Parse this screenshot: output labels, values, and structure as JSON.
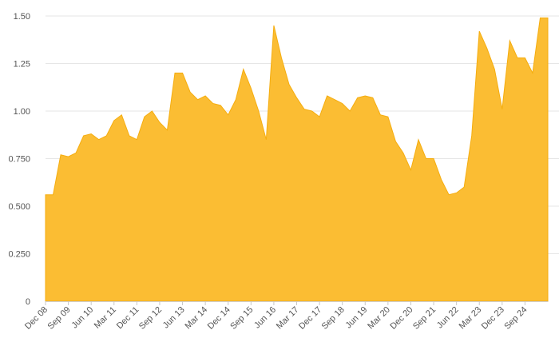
{
  "chart_data": {
    "type": "area",
    "title": "",
    "xlabel": "",
    "ylabel": "",
    "ylim": [
      0,
      1.5
    ],
    "grid": true,
    "legend": "none",
    "colors": {
      "area_fill": "#fbbd33",
      "area_stroke": "#f5ad0f",
      "gridline": "#e6e6e6",
      "axis_line": "#cfcfcf",
      "tick_label": "#555555"
    },
    "y_ticks": [
      {
        "value": 0,
        "label": "0"
      },
      {
        "value": 0.25,
        "label": "0.250"
      },
      {
        "value": 0.5,
        "label": "0.500"
      },
      {
        "value": 0.75,
        "label": "0.750"
      },
      {
        "value": 1.0,
        "label": "1.00"
      },
      {
        "value": 1.25,
        "label": "1.25"
      },
      {
        "value": 1.5,
        "label": "1.50"
      }
    ],
    "x_ticks": [
      {
        "index": 0,
        "label": "Dec 08"
      },
      {
        "index": 3,
        "label": "Sep 09"
      },
      {
        "index": 6,
        "label": "Jun 10"
      },
      {
        "index": 9,
        "label": "Mar 11"
      },
      {
        "index": 12,
        "label": "Dec 11"
      },
      {
        "index": 15,
        "label": "Sep 12"
      },
      {
        "index": 18,
        "label": "Jun 13"
      },
      {
        "index": 21,
        "label": "Mar 14"
      },
      {
        "index": 24,
        "label": "Dec 14"
      },
      {
        "index": 27,
        "label": "Sep 15"
      },
      {
        "index": 30,
        "label": "Jun 16"
      },
      {
        "index": 33,
        "label": "Mar 17"
      },
      {
        "index": 36,
        "label": "Dec 17"
      },
      {
        "index": 39,
        "label": "Sep 18"
      },
      {
        "index": 42,
        "label": "Jun 19"
      },
      {
        "index": 45,
        "label": "Mar 20"
      },
      {
        "index": 48,
        "label": "Dec 20"
      },
      {
        "index": 51,
        "label": "Sep 21"
      },
      {
        "index": 54,
        "label": "Jun 22"
      },
      {
        "index": 57,
        "label": "Mar 23"
      },
      {
        "index": 60,
        "label": "Dec 23"
      },
      {
        "index": 63,
        "label": "Sep 24"
      }
    ],
    "x": [
      "Dec 08",
      "Mar 09",
      "Jun 09",
      "Sep 09",
      "Dec 09",
      "Mar 10",
      "Jun 10",
      "Sep 10",
      "Dec 10",
      "Mar 11",
      "Jun 11",
      "Sep 11",
      "Dec 11",
      "Mar 12",
      "Jun 12",
      "Sep 12",
      "Dec 12",
      "Mar 13",
      "Jun 13",
      "Sep 13",
      "Dec 13",
      "Mar 14",
      "Jun 14",
      "Sep 14",
      "Dec 14",
      "Mar 15",
      "Jun 15",
      "Sep 15",
      "Dec 15",
      "Mar 16",
      "Jun 16",
      "Sep 16",
      "Dec 16",
      "Mar 17",
      "Jun 17",
      "Sep 17",
      "Dec 17",
      "Mar 18",
      "Jun 18",
      "Sep 18",
      "Dec 18",
      "Mar 19",
      "Jun 19",
      "Sep 19",
      "Dec 19",
      "Mar 20",
      "Jun 20",
      "Sep 20",
      "Dec 20",
      "Mar 21",
      "Jun 21",
      "Sep 21",
      "Dec 21",
      "Mar 22",
      "Jun 22",
      "Sep 22",
      "Dec 22",
      "Mar 23",
      "Jun 23",
      "Sep 23",
      "Dec 23",
      "Mar 24",
      "Jun 24",
      "Sep 24",
      "Dec 24",
      "Mar 25",
      "Jun 25"
    ],
    "values": [
      0.56,
      0.56,
      0.77,
      0.76,
      0.78,
      0.87,
      0.88,
      0.85,
      0.87,
      0.95,
      0.98,
      0.87,
      0.85,
      0.97,
      1.0,
      0.94,
      0.9,
      1.2,
      1.2,
      1.1,
      1.06,
      1.08,
      1.04,
      1.03,
      0.98,
      1.06,
      1.22,
      1.12,
      1.0,
      0.85,
      1.45,
      1.28,
      1.14,
      1.07,
      1.01,
      1.0,
      0.97,
      1.08,
      1.06,
      1.04,
      1.0,
      1.07,
      1.08,
      1.07,
      0.98,
      0.97,
      0.84,
      0.78,
      0.69,
      0.85,
      0.75,
      0.75,
      0.64,
      0.56,
      0.57,
      0.6,
      0.87,
      1.42,
      1.33,
      1.22,
      1.01,
      1.37,
      1.28,
      1.28,
      1.2,
      1.49,
      1.49
    ]
  }
}
